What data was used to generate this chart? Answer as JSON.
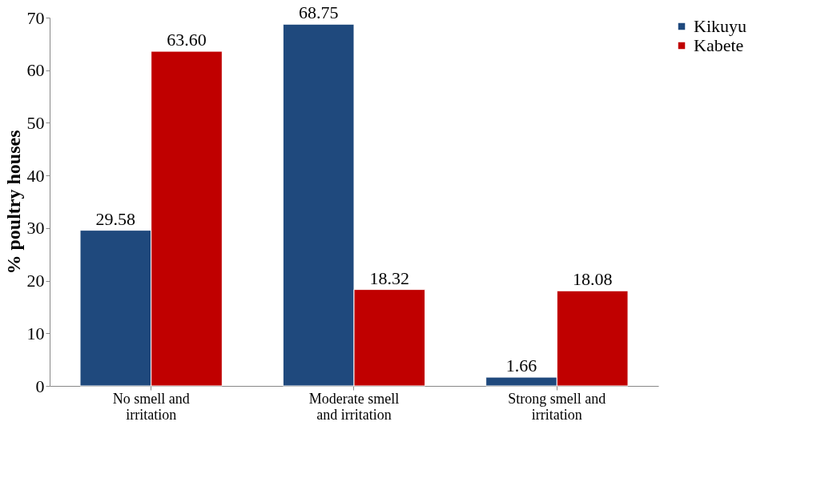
{
  "chart_data": {
    "type": "bar",
    "ylabel": "% poultry houses",
    "categories": [
      "No smell and irritation",
      "Moderate smell and irritation",
      "Strong smell and irritation"
    ],
    "series": [
      {
        "name": "Kikuyu",
        "color": "#1f497d",
        "values": [
          29.58,
          68.75,
          1.66
        ],
        "value_labels": [
          "29.58",
          "68.75",
          "1.66"
        ]
      },
      {
        "name": "Kabete",
        "color": "#c00000",
        "values": [
          63.6,
          18.32,
          18.08
        ],
        "value_labels": [
          "63.60",
          "18.32",
          "18.08"
        ]
      }
    ],
    "ylim": [
      0,
      70
    ],
    "yticks": [
      0,
      10,
      20,
      30,
      40,
      50,
      60,
      70
    ],
    "grid": false,
    "legend": "right"
  }
}
